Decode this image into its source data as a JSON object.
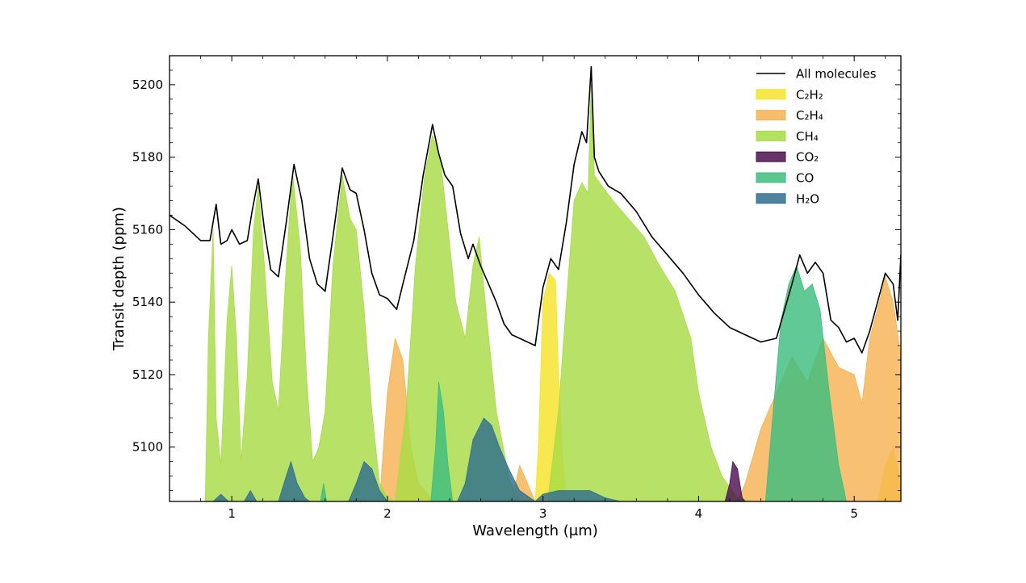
{
  "chart_data": {
    "type": "area",
    "xlabel": "Wavelength (μm)",
    "ylabel": "Transit depth (ppm)",
    "xlim": [
      0.6,
      5.3
    ],
    "ylim": [
      5085,
      5208
    ],
    "x_ticks": [
      1,
      2,
      3,
      4,
      5
    ],
    "y_ticks": [
      5100,
      5120,
      5140,
      5160,
      5180,
      5200
    ],
    "grid": false,
    "legend_position": "top-right",
    "series": [
      {
        "name": "All molecules",
        "style": "line",
        "color": "#000000",
        "points": [
          [
            0.6,
            5164
          ],
          [
            0.7,
            5161
          ],
          [
            0.8,
            5157
          ],
          [
            0.86,
            5157
          ],
          [
            0.9,
            5167
          ],
          [
            0.93,
            5156
          ],
          [
            0.97,
            5157
          ],
          [
            1.0,
            5160
          ],
          [
            1.05,
            5156
          ],
          [
            1.1,
            5157
          ],
          [
            1.13,
            5165
          ],
          [
            1.17,
            5174
          ],
          [
            1.21,
            5160
          ],
          [
            1.25,
            5149
          ],
          [
            1.3,
            5147
          ],
          [
            1.35,
            5162
          ],
          [
            1.4,
            5178
          ],
          [
            1.45,
            5168
          ],
          [
            1.5,
            5152
          ],
          [
            1.55,
            5145
          ],
          [
            1.6,
            5143
          ],
          [
            1.65,
            5158
          ],
          [
            1.71,
            5177
          ],
          [
            1.76,
            5171
          ],
          [
            1.8,
            5170
          ],
          [
            1.85,
            5160
          ],
          [
            1.9,
            5148
          ],
          [
            1.95,
            5142
          ],
          [
            2.0,
            5141
          ],
          [
            2.06,
            5138
          ],
          [
            2.1,
            5145
          ],
          [
            2.17,
            5157
          ],
          [
            2.23,
            5175
          ],
          [
            2.29,
            5189
          ],
          [
            2.33,
            5181
          ],
          [
            2.37,
            5175
          ],
          [
            2.42,
            5172
          ],
          [
            2.47,
            5159
          ],
          [
            2.52,
            5152
          ],
          [
            2.55,
            5156
          ],
          [
            2.6,
            5150
          ],
          [
            2.65,
            5145
          ],
          [
            2.7,
            5140
          ],
          [
            2.75,
            5134
          ],
          [
            2.8,
            5131
          ],
          [
            2.85,
            5130
          ],
          [
            2.9,
            5129
          ],
          [
            2.95,
            5128
          ],
          [
            3.0,
            5144
          ],
          [
            3.05,
            5152
          ],
          [
            3.1,
            5149
          ],
          [
            3.15,
            5162
          ],
          [
            3.2,
            5178
          ],
          [
            3.25,
            5187
          ],
          [
            3.28,
            5184
          ],
          [
            3.31,
            5205
          ],
          [
            3.33,
            5180
          ],
          [
            3.36,
            5176
          ],
          [
            3.42,
            5172
          ],
          [
            3.5,
            5170
          ],
          [
            3.6,
            5165
          ],
          [
            3.7,
            5158
          ],
          [
            3.8,
            5153
          ],
          [
            3.9,
            5148
          ],
          [
            4.0,
            5142
          ],
          [
            4.1,
            5137
          ],
          [
            4.2,
            5133
          ],
          [
            4.3,
            5131
          ],
          [
            4.4,
            5129
          ],
          [
            4.5,
            5130
          ],
          [
            4.6,
            5145
          ],
          [
            4.65,
            5153
          ],
          [
            4.7,
            5148
          ],
          [
            4.75,
            5151
          ],
          [
            4.8,
            5148
          ],
          [
            4.85,
            5135
          ],
          [
            4.9,
            5133
          ],
          [
            4.95,
            5129
          ],
          [
            5.0,
            5130
          ],
          [
            5.05,
            5126
          ],
          [
            5.1,
            5132
          ],
          [
            5.15,
            5140
          ],
          [
            5.2,
            5148
          ],
          [
            5.25,
            5145
          ],
          [
            5.28,
            5135
          ],
          [
            5.3,
            5153
          ]
        ]
      },
      {
        "name": "C₂H₂",
        "style": "area",
        "color": "#f5e32a",
        "points": [
          [
            0.6,
            5085
          ],
          [
            2.95,
            5085
          ],
          [
            2.97,
            5100
          ],
          [
            3.0,
            5140
          ],
          [
            3.04,
            5148
          ],
          [
            3.08,
            5146
          ],
          [
            3.1,
            5120
          ],
          [
            3.13,
            5095
          ],
          [
            3.15,
            5085
          ],
          [
            5.15,
            5085
          ],
          [
            5.2,
            5095
          ],
          [
            5.25,
            5100
          ],
          [
            5.3,
            5090
          ]
        ]
      },
      {
        "name": "C₂H₄",
        "style": "area",
        "color": "#f5b253",
        "points": [
          [
            0.6,
            5085
          ],
          [
            1.95,
            5085
          ],
          [
            2.0,
            5115
          ],
          [
            2.05,
            5130
          ],
          [
            2.1,
            5124
          ],
          [
            2.15,
            5100
          ],
          [
            2.2,
            5090
          ],
          [
            2.3,
            5085
          ],
          [
            2.8,
            5085
          ],
          [
            2.85,
            5095
          ],
          [
            2.9,
            5090
          ],
          [
            2.95,
            5085
          ],
          [
            4.25,
            5085
          ],
          [
            4.3,
            5090
          ],
          [
            4.4,
            5105
          ],
          [
            4.5,
            5115
          ],
          [
            4.6,
            5125
          ],
          [
            4.7,
            5118
          ],
          [
            4.8,
            5130
          ],
          [
            4.9,
            5122
          ],
          [
            5.0,
            5120
          ],
          [
            5.05,
            5112
          ],
          [
            5.1,
            5130
          ],
          [
            5.15,
            5138
          ],
          [
            5.2,
            5147
          ],
          [
            5.25,
            5140
          ],
          [
            5.3,
            5125
          ]
        ]
      },
      {
        "name": "CH₄",
        "style": "area",
        "color": "#a8dc45",
        "points": [
          [
            0.6,
            5085
          ],
          [
            0.83,
            5085
          ],
          [
            0.85,
            5130
          ],
          [
            0.88,
            5160
          ],
          [
            0.9,
            5108
          ],
          [
            0.93,
            5095
          ],
          [
            0.97,
            5135
          ],
          [
            1.0,
            5150
          ],
          [
            1.03,
            5130
          ],
          [
            1.06,
            5096
          ],
          [
            1.1,
            5120
          ],
          [
            1.14,
            5160
          ],
          [
            1.17,
            5172
          ],
          [
            1.21,
            5150
          ],
          [
            1.26,
            5118
          ],
          [
            1.3,
            5110
          ],
          [
            1.35,
            5150
          ],
          [
            1.39,
            5176
          ],
          [
            1.44,
            5155
          ],
          [
            1.48,
            5120
          ],
          [
            1.52,
            5096
          ],
          [
            1.56,
            5100
          ],
          [
            1.6,
            5110
          ],
          [
            1.65,
            5150
          ],
          [
            1.71,
            5175
          ],
          [
            1.76,
            5163
          ],
          [
            1.8,
            5160
          ],
          [
            1.85,
            5138
          ],
          [
            1.9,
            5110
          ],
          [
            1.95,
            5090
          ],
          [
            2.0,
            5086
          ],
          [
            2.05,
            5085
          ],
          [
            2.12,
            5110
          ],
          [
            2.18,
            5150
          ],
          [
            2.24,
            5175
          ],
          [
            2.29,
            5186
          ],
          [
            2.34,
            5180
          ],
          [
            2.39,
            5160
          ],
          [
            2.44,
            5140
          ],
          [
            2.5,
            5130
          ],
          [
            2.55,
            5150
          ],
          [
            2.59,
            5158
          ],
          [
            2.64,
            5135
          ],
          [
            2.7,
            5110
          ],
          [
            2.78,
            5092
          ],
          [
            2.85,
            5085
          ],
          [
            3.03,
            5085
          ],
          [
            3.1,
            5110
          ],
          [
            3.15,
            5140
          ],
          [
            3.2,
            5168
          ],
          [
            3.25,
            5173
          ],
          [
            3.29,
            5170
          ],
          [
            3.31,
            5200
          ],
          [
            3.33,
            5175
          ],
          [
            3.38,
            5172
          ],
          [
            3.45,
            5168
          ],
          [
            3.55,
            5163
          ],
          [
            3.65,
            5158
          ],
          [
            3.75,
            5150
          ],
          [
            3.85,
            5143
          ],
          [
            3.95,
            5130
          ],
          [
            4.0,
            5115
          ],
          [
            4.08,
            5100
          ],
          [
            4.15,
            5092
          ],
          [
            4.25,
            5086
          ],
          [
            4.35,
            5085
          ],
          [
            5.3,
            5085
          ]
        ]
      },
      {
        "name": "CO₂",
        "style": "area",
        "color": "#4a1250",
        "points": [
          [
            0.6,
            5085
          ],
          [
            4.17,
            5085
          ],
          [
            4.2,
            5090
          ],
          [
            4.22,
            5096
          ],
          [
            4.25,
            5094
          ],
          [
            4.28,
            5086
          ],
          [
            4.3,
            5085
          ],
          [
            5.3,
            5085
          ]
        ]
      },
      {
        "name": "CO",
        "style": "area",
        "color": "#3dbd7e",
        "points": [
          [
            0.6,
            5085
          ],
          [
            1.57,
            5085
          ],
          [
            1.59,
            5090
          ],
          [
            1.61,
            5085
          ],
          [
            2.28,
            5085
          ],
          [
            2.31,
            5100
          ],
          [
            2.33,
            5118
          ],
          [
            2.36,
            5110
          ],
          [
            2.39,
            5095
          ],
          [
            2.42,
            5085
          ],
          [
            4.43,
            5085
          ],
          [
            4.48,
            5110
          ],
          [
            4.53,
            5135
          ],
          [
            4.58,
            5145
          ],
          [
            4.63,
            5150
          ],
          [
            4.68,
            5143
          ],
          [
            4.73,
            5145
          ],
          [
            4.78,
            5138
          ],
          [
            4.84,
            5115
          ],
          [
            4.9,
            5095
          ],
          [
            4.95,
            5085
          ],
          [
            5.3,
            5085
          ]
        ]
      },
      {
        "name": "H₂O",
        "style": "area",
        "color": "#2f6f8e",
        "points": [
          [
            0.6,
            5085
          ],
          [
            0.88,
            5085
          ],
          [
            0.93,
            5087
          ],
          [
            0.98,
            5085
          ],
          [
            1.08,
            5085
          ],
          [
            1.12,
            5088
          ],
          [
            1.16,
            5085
          ],
          [
            1.3,
            5085
          ],
          [
            1.35,
            5092
          ],
          [
            1.38,
            5096
          ],
          [
            1.42,
            5090
          ],
          [
            1.47,
            5086
          ],
          [
            1.5,
            5085
          ],
          [
            1.75,
            5085
          ],
          [
            1.8,
            5090
          ],
          [
            1.85,
            5096
          ],
          [
            1.9,
            5094
          ],
          [
            1.95,
            5088
          ],
          [
            2.0,
            5085
          ],
          [
            2.45,
            5085
          ],
          [
            2.5,
            5090
          ],
          [
            2.55,
            5102
          ],
          [
            2.62,
            5108
          ],
          [
            2.67,
            5106
          ],
          [
            2.72,
            5100
          ],
          [
            2.78,
            5094
          ],
          [
            2.85,
            5088
          ],
          [
            2.95,
            5085
          ],
          [
            3.0,
            5087
          ],
          [
            3.1,
            5088
          ],
          [
            3.2,
            5088
          ],
          [
            3.3,
            5088
          ],
          [
            3.4,
            5086
          ],
          [
            3.5,
            5085
          ],
          [
            5.3,
            5085
          ]
        ]
      }
    ]
  }
}
